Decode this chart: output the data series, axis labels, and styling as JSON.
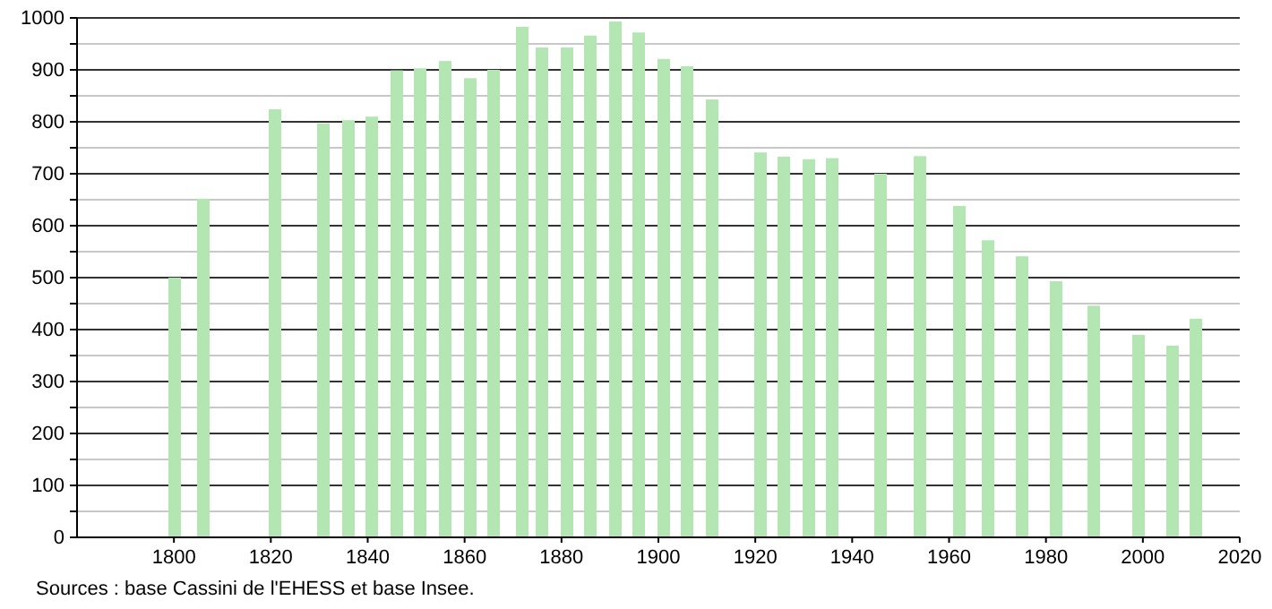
{
  "chart_data": {
    "type": "bar",
    "x": [
      1800,
      1806,
      1821,
      1831,
      1836,
      1841,
      1846,
      1851,
      1856,
      1861,
      1866,
      1872,
      1876,
      1881,
      1886,
      1891,
      1896,
      1901,
      1906,
      1911,
      1921,
      1926,
      1931,
      1936,
      1946,
      1954,
      1962,
      1968,
      1975,
      1982,
      1990,
      1999,
      2006,
      2011
    ],
    "values": [
      500,
      652,
      824,
      797,
      803,
      810,
      899,
      903,
      917,
      884,
      900,
      983,
      943,
      943,
      966,
      993,
      972,
      921,
      907,
      843,
      741,
      733,
      728,
      730,
      700,
      734,
      638,
      572,
      541,
      493,
      446,
      390,
      369,
      421
    ],
    "color": "#b3e6b3",
    "xlim": [
      1780,
      2020
    ],
    "xticks": [
      1800,
      1820,
      1840,
      1860,
      1880,
      1900,
      1920,
      1940,
      1960,
      1980,
      2000,
      2020
    ],
    "ylim": [
      0,
      1000
    ],
    "yticks": [
      0,
      {
        "value": 50,
        "label": null
      },
      100,
      {
        "value": 150,
        "label": null
      },
      200,
      {
        "value": 250,
        "label": null
      },
      300,
      {
        "value": 350,
        "label": null
      },
      400,
      {
        "value": 450,
        "label": null
      },
      500,
      {
        "value": 550,
        "label": null
      },
      600,
      {
        "value": 650,
        "label": null
      },
      700,
      {
        "value": 750,
        "label": null
      },
      800,
      {
        "value": 850,
        "label": null
      },
      900,
      {
        "value": 950,
        "label": null
      },
      1000
    ],
    "grid": "y",
    "annotations": [
      "Sources : base Cassini de l'EHESS et base Insee."
    ]
  }
}
